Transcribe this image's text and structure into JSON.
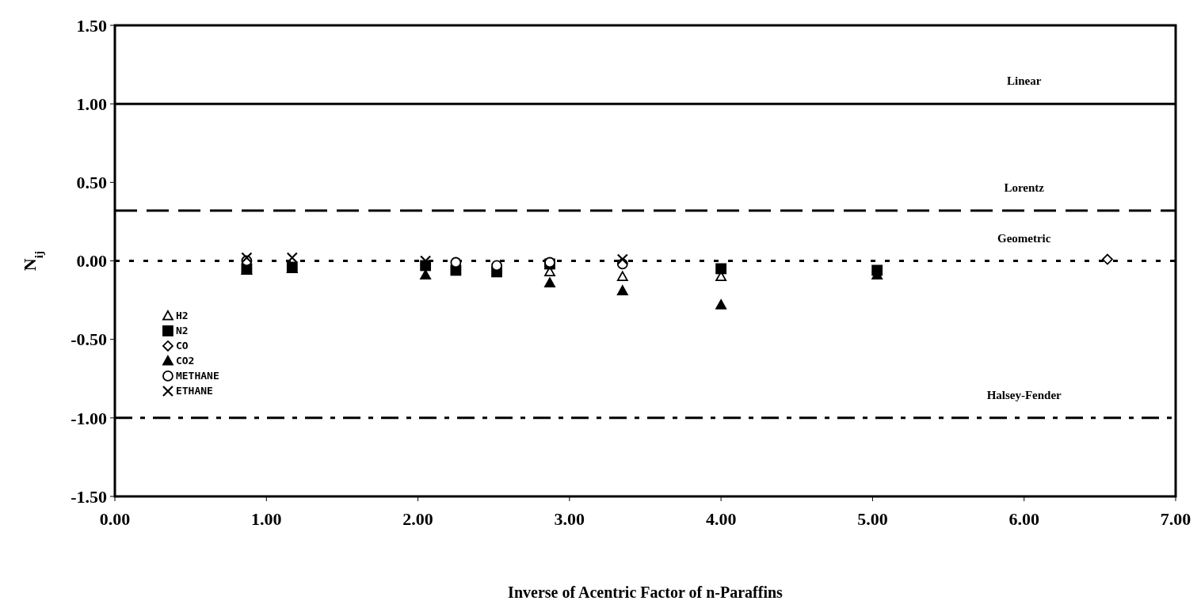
{
  "chart_data": {
    "type": "scatter",
    "xlabel": "Inverse of Acentric Factor of n-Paraffins",
    "ylabel": "N$_{ij}$",
    "xlim": [
      0,
      7
    ],
    "ylim": [
      -1.5,
      1.5
    ],
    "xticks": [
      {
        "value": 0,
        "label": "0.00"
      },
      {
        "value": 1,
        "label": "1.00"
      },
      {
        "value": 2,
        "label": "2.00"
      },
      {
        "value": 3,
        "label": "3.00"
      },
      {
        "value": 4,
        "label": "4.00"
      },
      {
        "value": 5,
        "label": "5.00"
      },
      {
        "value": 6,
        "label": "6.00"
      },
      {
        "value": 7,
        "label": "7.00"
      }
    ],
    "yticks": [
      {
        "value": -1.5,
        "label": "-1.50"
      },
      {
        "value": -1,
        "label": "-1.00"
      },
      {
        "value": -0.5,
        "label": "-0.50"
      },
      {
        "value": 0,
        "label": "0.00"
      },
      {
        "value": 0.5,
        "label": "0.50"
      },
      {
        "value": 1,
        "label": "1.00"
      },
      {
        "value": 1.5,
        "label": "1.50"
      }
    ],
    "grid": false,
    "legend": "left",
    "series": [
      {
        "name": "H2",
        "color": "#ffffff",
        "marker": "triangle",
        "x": [
          2.87,
          3.35,
          4.0
        ],
        "values": [
          -0.07,
          -0.1,
          -0.1
        ]
      },
      {
        "name": "N2",
        "color": "#000000",
        "marker": "square",
        "x": [
          0.87,
          1.17,
          2.05,
          2.25,
          2.52,
          2.87,
          4.0,
          5.03
        ],
        "values": [
          -0.05,
          -0.04,
          -0.03,
          -0.06,
          -0.07,
          -0.02,
          -0.05,
          -0.06
        ]
      },
      {
        "name": "CO",
        "color": "#ffffff",
        "marker": "diamond",
        "x": [
          6.55
        ],
        "values": [
          0.01
        ]
      },
      {
        "name": "CO2",
        "color": "#000000",
        "marker": "triangle",
        "x": [
          0.87,
          1.17,
          2.05,
          2.87,
          3.35,
          4.0,
          5.03
        ],
        "values": [
          -0.06,
          -0.05,
          -0.09,
          -0.14,
          -0.19,
          -0.28,
          -0.09
        ]
      },
      {
        "name": "METHANE",
        "color": "#ffffff",
        "marker": "circle",
        "x": [
          0.87,
          2.25,
          2.52,
          2.87,
          3.35
        ],
        "values": [
          0.0,
          -0.01,
          -0.03,
          -0.01,
          -0.02
        ]
      },
      {
        "name": "ETHANE",
        "color": "#000000",
        "marker": "cross",
        "x": [
          0.87,
          1.17,
          2.05,
          3.35
        ],
        "values": [
          0.02,
          0.02,
          0.0,
          0.01
        ]
      }
    ],
    "ref_lines": [
      {
        "axis": "y",
        "value": 1,
        "label": "Linear",
        "line_style": "solid",
        "color": "#000000"
      },
      {
        "axis": "y",
        "value": 0.32,
        "label": "Lorentz",
        "line_style": "dashed",
        "color": "#000000"
      },
      {
        "axis": "y",
        "value": 0,
        "label": "Geometric",
        "line_style": "dotted",
        "color": "#000000"
      },
      {
        "axis": "y",
        "value": -1,
        "label": "Halsey-Fender",
        "line_style": "dashdot",
        "color": "#000000"
      }
    ]
  }
}
